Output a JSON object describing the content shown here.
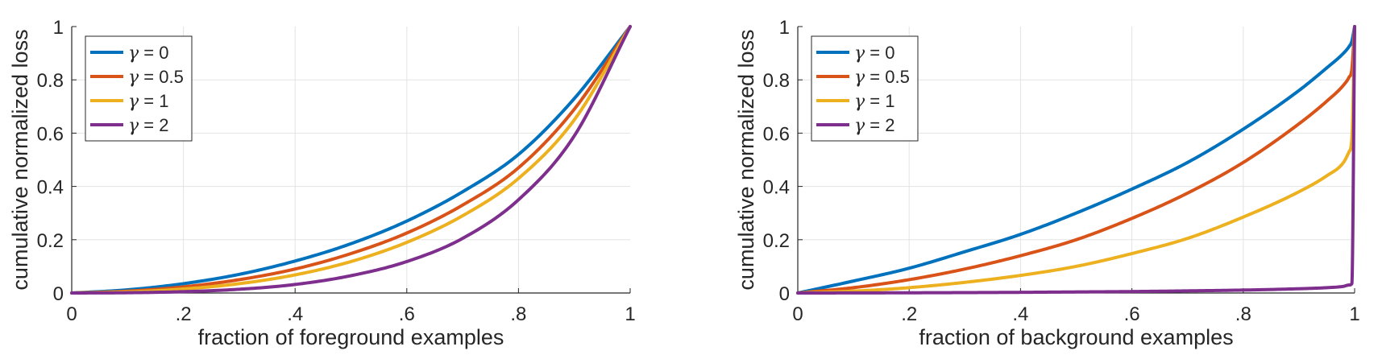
{
  "chart_data": [
    {
      "type": "line",
      "title": "",
      "xlabel": "fraction of foreground examples",
      "ylabel": "cumulative normalized loss",
      "xlim": [
        0,
        1
      ],
      "ylim": [
        0,
        1
      ],
      "xticks": [
        0,
        0.2,
        0.4,
        0.6,
        0.8,
        1
      ],
      "xtick_labels": [
        "0",
        ".2",
        ".4",
        ".6",
        ".8",
        "1"
      ],
      "yticks": [
        0,
        0.2,
        0.4,
        0.6,
        0.8,
        1
      ],
      "ytick_labels": [
        "0",
        "0.2",
        "0.4",
        "0.6",
        "0.8",
        "1"
      ],
      "grid": true,
      "legend_position": "top-left",
      "x": [
        0,
        0.1,
        0.2,
        0.3,
        0.4,
        0.5,
        0.6,
        0.7,
        0.8,
        0.9,
        1.0
      ],
      "series": [
        {
          "name": "γ = 0",
          "legend_math": "γ",
          "legend_rest": " = 0",
          "color": "#0072BD",
          "values": [
            0,
            0.012,
            0.035,
            0.07,
            0.12,
            0.185,
            0.27,
            0.38,
            0.52,
            0.73,
            1.0
          ]
        },
        {
          "name": "γ = 0.5",
          "legend_math": "γ",
          "legend_rest": " = 0.5",
          "color": "#D95319",
          "values": [
            0,
            0.007,
            0.023,
            0.05,
            0.09,
            0.148,
            0.225,
            0.33,
            0.47,
            0.69,
            1.0
          ]
        },
        {
          "name": "γ = 1",
          "legend_math": "γ",
          "legend_rest": " = 1",
          "color": "#EDB120",
          "values": [
            0,
            0.004,
            0.015,
            0.035,
            0.068,
            0.118,
            0.19,
            0.29,
            0.43,
            0.65,
            1.0
          ]
        },
        {
          "name": "γ = 2",
          "legend_math": "γ",
          "legend_rest": " = 2",
          "color": "#7E2F8E",
          "values": [
            0,
            0.001,
            0.005,
            0.014,
            0.032,
            0.065,
            0.118,
            0.205,
            0.35,
            0.59,
            1.0
          ]
        }
      ]
    },
    {
      "type": "line",
      "title": "",
      "xlabel": "fraction of background examples",
      "ylabel": "cumulative normalized loss",
      "xlim": [
        0,
        1
      ],
      "ylim": [
        0,
        1
      ],
      "xticks": [
        0,
        0.2,
        0.4,
        0.6,
        0.8,
        1
      ],
      "xtick_labels": [
        "0",
        ".2",
        ".4",
        ".6",
        ".8",
        "1"
      ],
      "yticks": [
        0,
        0.2,
        0.4,
        0.6,
        0.8,
        1
      ],
      "ytick_labels": [
        "0",
        "0.2",
        "0.4",
        "0.6",
        "0.8",
        "1"
      ],
      "grid": true,
      "legend_position": "top-left",
      "x": [
        0,
        0.1,
        0.2,
        0.3,
        0.4,
        0.5,
        0.6,
        0.7,
        0.8,
        0.9,
        0.95,
        0.98,
        0.99,
        0.995,
        1.0
      ],
      "series": [
        {
          "name": "γ = 0",
          "legend_math": "γ",
          "legend_rest": " = 0",
          "color": "#0072BD",
          "values": [
            0,
            0.045,
            0.093,
            0.155,
            0.22,
            0.3,
            0.39,
            0.49,
            0.615,
            0.76,
            0.845,
            0.9,
            0.925,
            0.945,
            1.0
          ]
        },
        {
          "name": "γ = 0.5",
          "legend_math": "γ",
          "legend_rest": " = 0.5",
          "color": "#D95319",
          "values": [
            0,
            0.02,
            0.05,
            0.09,
            0.14,
            0.2,
            0.28,
            0.375,
            0.49,
            0.635,
            0.72,
            0.78,
            0.81,
            0.84,
            1.0
          ]
        },
        {
          "name": "γ = 1",
          "legend_math": "γ",
          "legend_rest": " = 1",
          "color": "#EDB120",
          "values": [
            0,
            0.007,
            0.02,
            0.04,
            0.066,
            0.1,
            0.148,
            0.205,
            0.285,
            0.38,
            0.44,
            0.49,
            0.53,
            0.58,
            1.0
          ]
        },
        {
          "name": "γ = 2",
          "legend_math": "γ",
          "legend_rest": " = 2",
          "color": "#7E2F8E",
          "values": [
            0,
            0.0003,
            0.0008,
            0.0015,
            0.0025,
            0.004,
            0.0055,
            0.008,
            0.011,
            0.016,
            0.02,
            0.025,
            0.03,
            0.035,
            1.0
          ]
        }
      ]
    }
  ]
}
